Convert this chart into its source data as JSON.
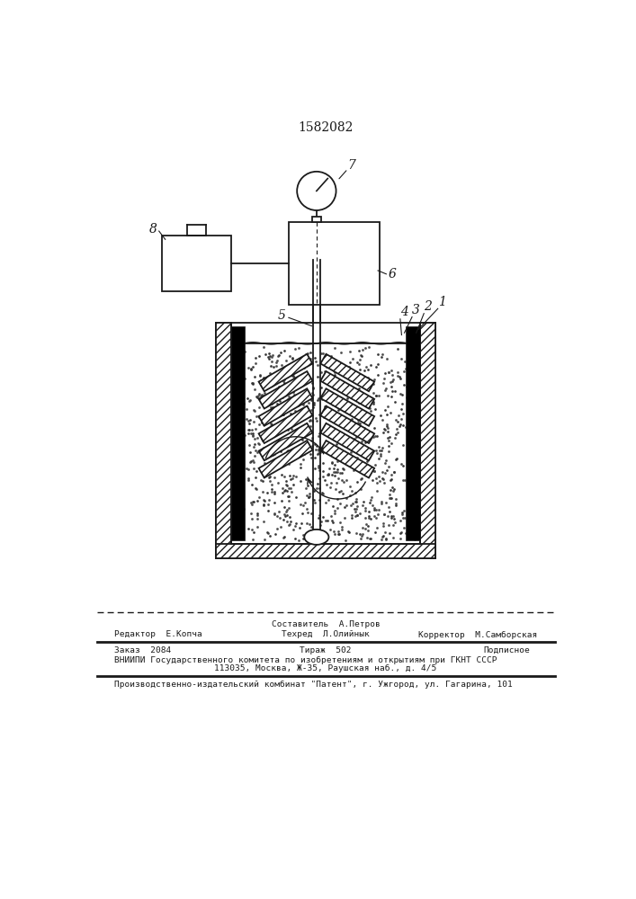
{
  "patent_number": "1582082",
  "bg_color": "#ffffff",
  "line_color": "#1a1a1a",
  "footer_line1_center_top": "Составитель  А.Петров",
  "footer_line1_left": "Редактор  Е.Копча",
  "footer_line1_center": "Техред  Л.Олийнык",
  "footer_line1_right": "Корректор  М.Самборская",
  "footer_line2_col1": "Заказ  2084",
  "footer_line2_col2": "Тираж  502",
  "footer_line2_col3": "Подписное",
  "footer_line3": "ВНИИПИ Государственного комитета по изобретениям и открытиям при ГКНТ СССР",
  "footer_line4": "113035, Москва, Ж-35, Раушская наб., д. 4/5",
  "footer_line5": "Производственно-издательский комбинат \"Патент\", г. Ужгород, ул. Гагарина, 101"
}
